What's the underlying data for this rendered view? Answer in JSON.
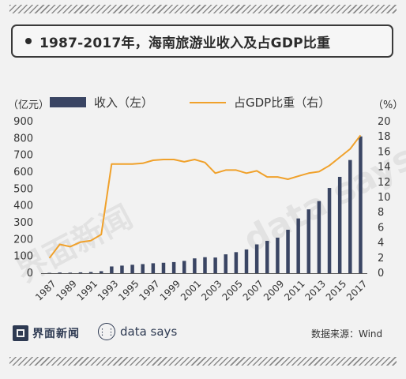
{
  "header": {
    "title": "1987-2017年，海南旅游业收入及占GDP比重"
  },
  "axes": {
    "left_unit": "（亿元）",
    "right_unit": "（%）"
  },
  "legend": {
    "bar_label": "收入（左）",
    "line_label": "占GDP比重（右）"
  },
  "chart_data": {
    "type": "bar+line",
    "x": [
      1987,
      1988,
      1989,
      1990,
      1991,
      1992,
      1993,
      1994,
      1995,
      1996,
      1997,
      1998,
      1999,
      2000,
      2001,
      2002,
      2003,
      2004,
      2005,
      2006,
      2007,
      2008,
      2009,
      2010,
      2011,
      2012,
      2013,
      2014,
      2015,
      2016,
      2017
    ],
    "x_tick_labels": [
      "1987",
      "1989",
      "1991",
      "1993",
      "1995",
      "1997",
      "1999",
      "2001",
      "2003",
      "2005",
      "2007",
      "2009",
      "2011",
      "2013",
      "2015",
      "2017"
    ],
    "series": [
      {
        "name": "收入（左）",
        "type": "bar",
        "axis": "left",
        "color": "#3a4563",
        "values": [
          2,
          4,
          3,
          5,
          7,
          12,
          40,
          45,
          50,
          54,
          59,
          62,
          66,
          73,
          88,
          95,
          93,
          112,
          125,
          141,
          171,
          192,
          211,
          258,
          325,
          379,
          428,
          506,
          572,
          672,
          812
        ]
      },
      {
        "name": "占GDP比重（右）",
        "type": "line",
        "axis": "right",
        "color": "#f0a12b",
        "values": [
          2.0,
          3.8,
          3.5,
          4.1,
          4.3,
          5.1,
          14.4,
          14.4,
          14.4,
          14.5,
          14.9,
          15.0,
          15.0,
          14.7,
          15.0,
          14.6,
          13.2,
          13.6,
          13.6,
          13.2,
          13.5,
          12.7,
          12.7,
          12.4,
          12.8,
          13.2,
          13.4,
          14.2,
          15.3,
          16.4,
          18.2
        ]
      }
    ],
    "ylim_left": [
      0,
      900
    ],
    "yticks_left": [
      0,
      100,
      200,
      300,
      400,
      500,
      600,
      700,
      800,
      900
    ],
    "ylim_right": [
      0,
      20
    ],
    "yticks_right": [
      0,
      2,
      4,
      6,
      8,
      10,
      12,
      14,
      16,
      18,
      20
    ],
    "grid": false,
    "legend_position": "top"
  },
  "watermark": {
    "text_cn": "界面新闻",
    "text_en": "data says"
  },
  "footer": {
    "brand_cn": "界面新闻",
    "brand_en": "data says",
    "brand_icon": "data-says-icon",
    "source": "数据来源：Wind"
  }
}
